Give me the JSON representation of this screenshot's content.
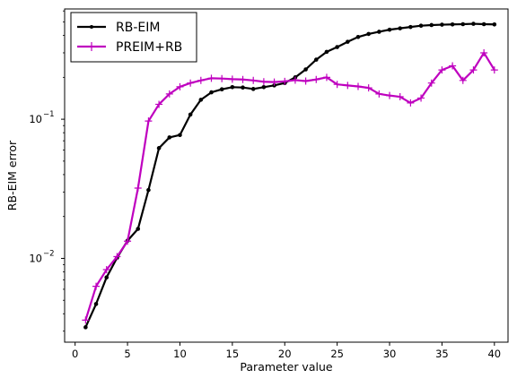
{
  "chart_data": {
    "type": "line",
    "xlabel": "Parameter value",
    "ylabel": "RB-EIM error",
    "xlim": [
      -1,
      41.3
    ],
    "ylim": [
      0.0025,
      0.62
    ],
    "yscale": "log",
    "grid": false,
    "legend_position": "top-left",
    "x_ticks": [
      0,
      5,
      10,
      15,
      20,
      25,
      30,
      35,
      40
    ],
    "x_tick_labels": [
      "0",
      "5",
      "10",
      "15",
      "20",
      "25",
      "30",
      "35",
      "40"
    ],
    "y_major_ticks": [
      0.01,
      0.1
    ],
    "y_tick_labels": [
      "10",
      "10"
    ],
    "y_tick_exponents": [
      "−2",
      "−1"
    ],
    "x": [
      1,
      2,
      3,
      4,
      5,
      6,
      7,
      8,
      9,
      10,
      11,
      12,
      13,
      14,
      15,
      16,
      17,
      18,
      19,
      20,
      21,
      22,
      23,
      24,
      25,
      26,
      27,
      28,
      29,
      30,
      31,
      32,
      33,
      34,
      35,
      36,
      37,
      38,
      39,
      40
    ],
    "series": [
      {
        "name": "RB-EIM",
        "color": "#000000",
        "marker": "dot",
        "values": [
          0.0032,
          0.0047,
          0.0073,
          0.0101,
          0.0134,
          0.0163,
          0.031,
          0.062,
          0.074,
          0.077,
          0.108,
          0.138,
          0.156,
          0.164,
          0.17,
          0.169,
          0.165,
          0.17,
          0.175,
          0.182,
          0.2,
          0.228,
          0.268,
          0.305,
          0.33,
          0.36,
          0.39,
          0.41,
          0.425,
          0.44,
          0.45,
          0.46,
          0.47,
          0.475,
          0.478,
          0.48,
          0.482,
          0.485,
          0.482,
          0.48
        ]
      },
      {
        "name": "PREIM+RB",
        "color": "#bf00bf",
        "marker": "plus",
        "values": [
          0.0036,
          0.0063,
          0.0083,
          0.0103,
          0.0133,
          0.032,
          0.097,
          0.128,
          0.152,
          0.171,
          0.182,
          0.19,
          0.197,
          0.196,
          0.194,
          0.193,
          0.19,
          0.186,
          0.185,
          0.187,
          0.191,
          0.188,
          0.193,
          0.2,
          0.178,
          0.175,
          0.172,
          0.168,
          0.152,
          0.148,
          0.145,
          0.131,
          0.142,
          0.182,
          0.226,
          0.242,
          0.19,
          0.226,
          0.3,
          0.226
        ]
      }
    ]
  }
}
